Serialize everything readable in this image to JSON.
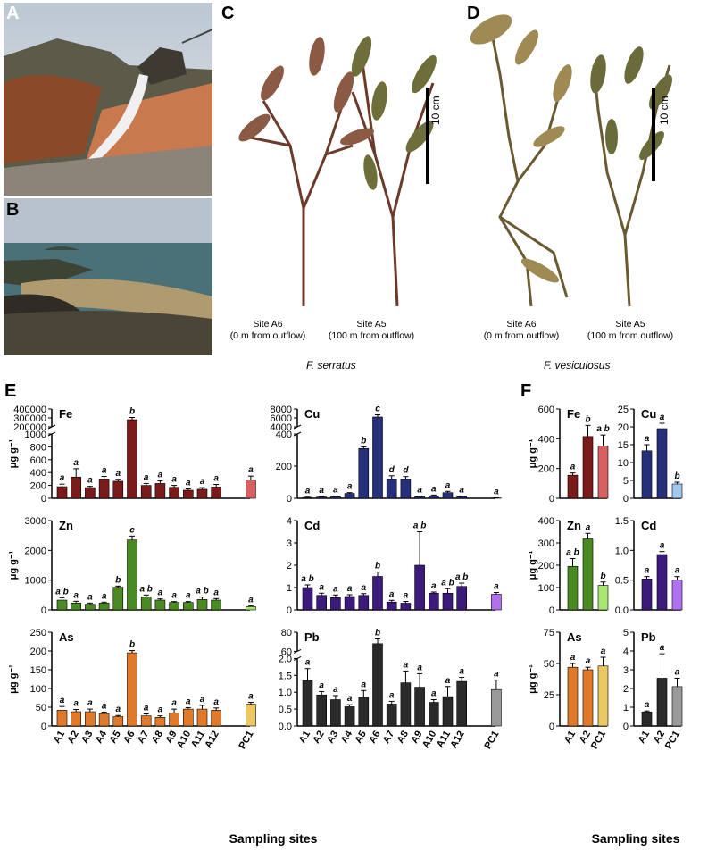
{
  "panels": {
    "a": "A",
    "b": "B",
    "c": "C",
    "d": "D",
    "e": "E",
    "f": "F"
  },
  "photo_c": {
    "species": "F. serratus",
    "scale_label": "10 cm",
    "left_caption": [
      "Site A6",
      "(0 m from outflow)"
    ],
    "right_caption": [
      "Site A5",
      "(100 m from outflow)"
    ]
  },
  "photo_d": {
    "species": "F. vesiculosus",
    "scale_label": "10 cm",
    "left_caption": [
      "Site A6",
      "(0 m from outflow)"
    ],
    "right_caption": [
      "Site A5",
      "(100 m from outflow)"
    ]
  },
  "colors": {
    "Fe": "#7a1a1a",
    "Cu": "#26307a",
    "Zn": "#4a8a22",
    "Cd": "#3a1a7a",
    "As": "#e07a2a",
    "Pb": "#2a2a2a",
    "PC1_Fe": "#d86060",
    "PC1_Cu": "#9ec8f0",
    "PC1_Zn": "#a8e870",
    "PC1_Cd": "#b070f0",
    "PC1_As": "#ecc860",
    "PC1_Pb": "#9a9a9a"
  },
  "chart_data": [
    {
      "panel": "E",
      "element": "Fe",
      "type": "bar",
      "ylabel": "μg g⁻¹",
      "axis": "broken",
      "categories": [
        "A1",
        "A2",
        "A3",
        "A4",
        "A5",
        "A6",
        "A7",
        "A8",
        "A9",
        "A10",
        "A11",
        "A12",
        "PC1"
      ],
      "values": [
        180,
        330,
        165,
        300,
        265,
        280000,
        200,
        230,
        170,
        125,
        140,
        175,
        285
      ],
      "errors": [
        40,
        130,
        20,
        40,
        30,
        25000,
        30,
        40,
        30,
        20,
        25,
        40,
        60
      ],
      "letters": [
        "a",
        "a",
        "a",
        "a",
        "a",
        "b",
        "a",
        "a",
        "a",
        "a",
        "a",
        "a",
        "a"
      ],
      "yticks_low": [
        0,
        200,
        400,
        600,
        800,
        1000
      ],
      "yticks_high": [
        200000,
        300000,
        400000
      ],
      "ytick_labels_high": [
        "200000",
        "300000",
        "400000"
      ]
    },
    {
      "panel": "E",
      "element": "Cu",
      "type": "bar",
      "ylabel": "",
      "axis": "broken",
      "categories": [
        "A1",
        "A2",
        "A3",
        "A4",
        "A5",
        "A6",
        "A7",
        "A8",
        "A9",
        "A10",
        "A11",
        "A12",
        "PC1"
      ],
      "values": [
        5,
        8,
        10,
        30,
        310,
        6200,
        120,
        120,
        10,
        15,
        35,
        10,
        2
      ],
      "errors": [
        2,
        3,
        3,
        5,
        10,
        500,
        20,
        15,
        3,
        5,
        8,
        3,
        1
      ],
      "letters": [
        "a",
        "a",
        "a",
        "a",
        "b",
        "c",
        "d",
        "d",
        "a",
        "a",
        "a",
        "a",
        "a"
      ],
      "yticks_low": [
        0,
        200,
        400
      ],
      "yticks_high": [
        4000,
        6000,
        8000
      ],
      "ytick_labels_high": [
        "4000",
        "6000",
        "8000"
      ]
    },
    {
      "panel": "E",
      "element": "Zn",
      "type": "bar",
      "ylabel": "μg g⁻¹",
      "categories": [
        "A1",
        "A2",
        "A3",
        "A4",
        "A5",
        "A6",
        "A7",
        "A8",
        "A9",
        "A10",
        "A11",
        "A12",
        "PC1"
      ],
      "values": [
        330,
        230,
        190,
        230,
        760,
        2350,
        440,
        330,
        250,
        250,
        350,
        330,
        110
      ],
      "errors": [
        80,
        60,
        40,
        30,
        40,
        130,
        60,
        40,
        30,
        30,
        80,
        50,
        30
      ],
      "letters": [
        "a b",
        "a",
        "a",
        "a",
        "b",
        "c",
        "a b",
        "a",
        "a",
        "a",
        "a b",
        "a",
        "a"
      ],
      "ylim": [
        0,
        3000
      ],
      "yticks": [
        0,
        1000,
        2000,
        3000
      ]
    },
    {
      "panel": "E",
      "element": "Cd",
      "type": "bar",
      "ylabel": "",
      "categories": [
        "A1",
        "A2",
        "A3",
        "A4",
        "A5",
        "A6",
        "A7",
        "A8",
        "A9",
        "A10",
        "A11",
        "A12",
        "PC1"
      ],
      "values": [
        1.0,
        0.65,
        0.55,
        0.6,
        0.65,
        1.5,
        0.35,
        0.3,
        2.0,
        0.75,
        0.75,
        1.05,
        0.7
      ],
      "errors": [
        0.12,
        0.1,
        0.12,
        0.08,
        0.08,
        0.2,
        0.08,
        0.08,
        1.5,
        0.05,
        0.2,
        0.15,
        0.08
      ],
      "letters": [
        "a b",
        "a",
        "a",
        "a",
        "a",
        "b",
        "a",
        "a",
        "a b",
        "a",
        "a b",
        "a b",
        "a"
      ],
      "ylim": [
        0,
        4
      ],
      "yticks": [
        0,
        1,
        2,
        3,
        4
      ]
    },
    {
      "panel": "E",
      "element": "As",
      "type": "bar",
      "ylabel": "μg g⁻¹",
      "categories": [
        "A1",
        "A2",
        "A3",
        "A4",
        "A5",
        "A6",
        "A7",
        "A8",
        "A9",
        "A10",
        "A11",
        "A12",
        "PC1"
      ],
      "values": [
        42,
        38,
        38,
        33,
        25,
        195,
        27,
        23,
        35,
        45,
        45,
        42,
        58
      ],
      "errors": [
        10,
        6,
        7,
        4,
        3,
        6,
        5,
        4,
        10,
        4,
        10,
        6,
        5
      ],
      "letters": [
        "a",
        "a",
        "a",
        "a",
        "a",
        "b",
        "a",
        "a",
        "a",
        "a",
        "a",
        "a",
        "a"
      ],
      "ylim": [
        0,
        250
      ],
      "yticks": [
        0,
        50,
        100,
        150,
        200,
        250
      ]
    },
    {
      "panel": "E",
      "element": "Pb",
      "type": "bar",
      "ylabel": "",
      "axis": "broken",
      "categories": [
        "A1",
        "A2",
        "A3",
        "A4",
        "A5",
        "A6",
        "A7",
        "A8",
        "A9",
        "A10",
        "A11",
        "A12",
        "PC1"
      ],
      "values": [
        1.35,
        0.92,
        0.78,
        0.57,
        0.85,
        68,
        0.65,
        1.28,
        1.15,
        0.7,
        0.87,
        1.32,
        1.08
      ],
      "errors": [
        0.35,
        0.1,
        0.12,
        0.06,
        0.2,
        5,
        0.08,
        0.35,
        0.4,
        0.08,
        0.3,
        0.12,
        0.28
      ],
      "letters": [
        "a",
        "a",
        "a",
        "a",
        "a",
        "b",
        "a",
        "a",
        "a",
        "a",
        "a",
        "a",
        "a"
      ],
      "yticks_low": [
        "0.0",
        "0.5",
        "1.0",
        "1.5",
        "2.0"
      ],
      "yticks_high": [
        60,
        80
      ],
      "ytick_labels_high": [
        "60",
        "80"
      ]
    },
    {
      "panel": "F",
      "element": "Fe",
      "type": "bar",
      "ylabel": "μg g⁻¹",
      "categories": [
        "A1",
        "A2",
        "PC1"
      ],
      "values": [
        155,
        415,
        350
      ],
      "errors": [
        15,
        75,
        75
      ],
      "letters": [
        "a",
        "b",
        "a b"
      ],
      "ylim": [
        0,
        600
      ],
      "yticks": [
        0,
        200,
        400,
        600
      ]
    },
    {
      "panel": "F",
      "element": "Cu",
      "type": "bar",
      "ylabel": "",
      "categories": [
        "A1",
        "A2",
        "PC1"
      ],
      "values": [
        13.3,
        19.5,
        4.0
      ],
      "errors": [
        1.7,
        1.5,
        0.5
      ],
      "letters": [
        "a",
        "a",
        "b"
      ],
      "ylim": [
        0,
        25
      ],
      "yticks": [
        0,
        5,
        10,
        15,
        20,
        25
      ]
    },
    {
      "panel": "F",
      "element": "Zn",
      "type": "bar",
      "ylabel": "μg g⁻¹",
      "categories": [
        "A1",
        "A2",
        "PC1"
      ],
      "values": [
        195,
        318,
        110
      ],
      "errors": [
        35,
        25,
        15
      ],
      "letters": [
        "a b",
        "a",
        "b"
      ],
      "ylim": [
        0,
        400
      ],
      "yticks": [
        0,
        100,
        200,
        300,
        400
      ]
    },
    {
      "panel": "F",
      "element": "Cd",
      "type": "bar",
      "ylabel": "",
      "categories": [
        "A1",
        "A2",
        "PC1"
      ],
      "values": [
        0.52,
        0.93,
        0.5
      ],
      "errors": [
        0.04,
        0.05,
        0.06
      ],
      "letters": [
        "a",
        "a",
        "a"
      ],
      "ylim": [
        0,
        1.5
      ],
      "yticks": [
        "0.0",
        "0.5",
        "1.0",
        "1.5"
      ]
    },
    {
      "panel": "F",
      "element": "As",
      "type": "bar",
      "ylabel": "μg g⁻¹",
      "categories": [
        "A1",
        "A2",
        "PC1"
      ],
      "values": [
        47,
        45,
        48
      ],
      "errors": [
        3,
        2,
        7
      ],
      "letters": [
        "a",
        "a",
        "a"
      ],
      "ylim": [
        0,
        75
      ],
      "yticks": [
        0,
        25,
        50,
        75
      ]
    },
    {
      "panel": "F",
      "element": "Pb",
      "type": "bar",
      "ylabel": "",
      "categories": [
        "A1",
        "A2",
        "PC1"
      ],
      "values": [
        0.75,
        2.55,
        2.1
      ],
      "errors": [
        0.05,
        1.3,
        0.45
      ],
      "letters": [
        "a",
        "a",
        "a"
      ],
      "ylim": [
        0,
        5
      ],
      "yticks": [
        0,
        1,
        2,
        3,
        4,
        5
      ]
    }
  ],
  "xlabel": "Sampling sites"
}
